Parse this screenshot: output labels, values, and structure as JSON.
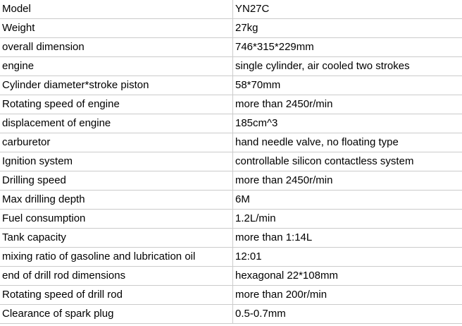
{
  "rows": [
    {
      "label": "Model",
      "value": "YN27C"
    },
    {
      "label": "Weight",
      "value": "27kg"
    },
    {
      "label": "overall dimension",
      "value": "746*315*229mm"
    },
    {
      "label": "engine",
      "value": "single cylinder, air cooled two strokes"
    },
    {
      "label": "Cylinder diameter*stroke piston",
      "value": "58*70mm"
    },
    {
      "label": "Rotating speed of engine",
      "value": "more than 2450r/min"
    },
    {
      "label": "displacement of engine",
      "value": "185cm^3"
    },
    {
      "label": "carburetor",
      "value": "hand needle valve, no floating type"
    },
    {
      "label": "Ignition system",
      "value": "controllable silicon contactless system"
    },
    {
      "label": "Drilling speed",
      "value": "more than 2450r/min"
    },
    {
      "label": "Max drilling depth",
      "value": "6M"
    },
    {
      "label": "Fuel consumption",
      "value": "1.2L/min"
    },
    {
      "label": "Tank capacity",
      "value": "more than 1:14L"
    },
    {
      "label": "mixing ratio of gasoline and lubrication oil",
      "value": "12:01"
    },
    {
      "label": "end of drill rod dimensions",
      "value": "hexagonal 22*108mm"
    },
    {
      "label": "Rotating speed of drill rod",
      "value": "more than 200r/min"
    },
    {
      "label": "Clearance of spark plug",
      "value": "0.5-0.7mm"
    }
  ]
}
